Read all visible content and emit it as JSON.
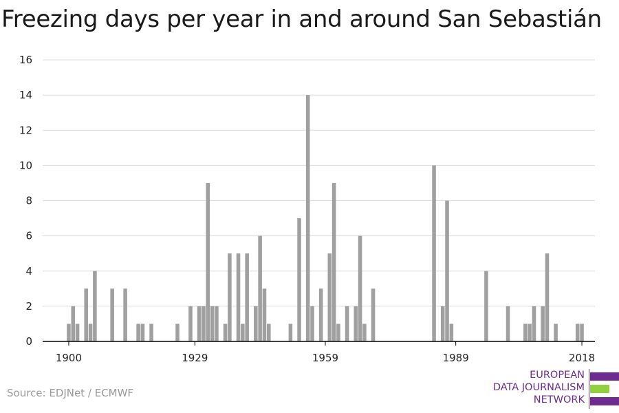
{
  "title": "Freezing days per year in and around San Sebastián",
  "source": "Source: EDJNet / ECMWF",
  "logo": {
    "lines": [
      "EUROPEAN",
      "DATA JOURNALISM",
      "NETWORK"
    ],
    "colors": [
      "#6e2c91",
      "#8fd13f",
      "#6e2c91"
    ]
  },
  "colors": {
    "bar": "#a0a0a0",
    "grid": "#dddddd",
    "axis": "#000000",
    "text": "#222222"
  },
  "chart_data": {
    "type": "bar",
    "title": "Freezing days per year in and around San Sebastián",
    "xlabel": "",
    "ylabel": "",
    "xlim": [
      1894,
      2021
    ],
    "ylim": [
      0,
      16
    ],
    "yticks": [
      0,
      2,
      4,
      6,
      8,
      10,
      12,
      14,
      16
    ],
    "xticks": [
      1900,
      1929,
      1959,
      1989,
      2018
    ],
    "grid": true,
    "series": [
      {
        "x": [
          1900,
          1901,
          1902,
          1904,
          1905,
          1906,
          1910,
          1913,
          1916,
          1917,
          1919,
          1925,
          1928,
          1930,
          1931,
          1932,
          1933,
          1934,
          1936,
          1937,
          1939,
          1940,
          1941,
          1943,
          1944,
          1945,
          1946,
          1951,
          1953,
          1955,
          1956,
          1958,
          1960,
          1961,
          1962,
          1964,
          1966,
          1967,
          1968,
          1970,
          1984,
          1986,
          1987,
          1988,
          1996,
          2001,
          2005,
          2006,
          2007,
          2009,
          2010,
          2012,
          2017,
          2018
        ],
        "values": [
          1,
          2,
          1,
          3,
          1,
          4,
          3,
          3,
          1,
          1,
          1,
          1,
          2,
          2,
          2,
          9,
          2,
          2,
          1,
          5,
          5,
          1,
          5,
          2,
          6,
          3,
          1,
          1,
          7,
          14,
          2,
          3,
          5,
          9,
          1,
          2,
          2,
          6,
          1,
          3,
          10,
          2,
          8,
          1,
          4,
          2,
          1,
          1,
          2,
          2,
          5,
          1,
          1,
          1
        ]
      }
    ]
  }
}
